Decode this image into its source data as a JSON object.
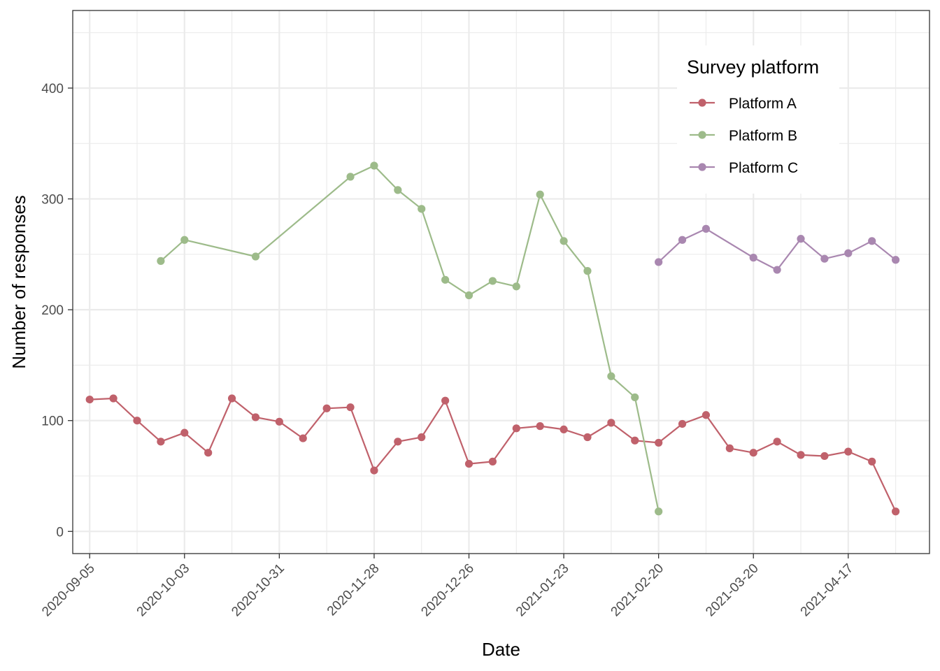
{
  "chart_data": {
    "type": "line",
    "title": "",
    "xlabel": "Date",
    "ylabel": "Number of responses",
    "x_type": "date",
    "xlim": [
      "2020-08-31",
      "2021-05-11"
    ],
    "ylim": [
      -20,
      470
    ],
    "x_ticks": [
      "2020-09-05",
      "2020-10-03",
      "2020-10-31",
      "2020-11-28",
      "2020-12-26",
      "2021-01-23",
      "2021-02-20",
      "2021-03-20",
      "2021-04-17"
    ],
    "y_ticks": [
      0,
      100,
      200,
      300,
      400
    ],
    "grid": true,
    "legend": {
      "title": "Survey platform",
      "position": "top-right"
    },
    "series": [
      {
        "name": "Platform A",
        "color": "#c0616b",
        "x": [
          "2020-09-05",
          "2020-09-12",
          "2020-09-19",
          "2020-09-26",
          "2020-10-03",
          "2020-10-10",
          "2020-10-17",
          "2020-10-24",
          "2020-10-31",
          "2020-11-07",
          "2020-11-14",
          "2020-11-21",
          "2020-11-28",
          "2020-12-05",
          "2020-12-12",
          "2020-12-19",
          "2020-12-26",
          "2021-01-02",
          "2021-01-09",
          "2021-01-16",
          "2021-01-23",
          "2021-01-30",
          "2021-02-06",
          "2021-02-13",
          "2021-02-20",
          "2021-02-27",
          "2021-03-06",
          "2021-03-13",
          "2021-03-20",
          "2021-03-27",
          "2021-04-03",
          "2021-04-10",
          "2021-04-17",
          "2021-04-24",
          "2021-05-01"
        ],
        "values": [
          119,
          120,
          100,
          81,
          89,
          71,
          120,
          103,
          99,
          84,
          111,
          112,
          55,
          81,
          85,
          118,
          61,
          63,
          93,
          95,
          92,
          85,
          98,
          82,
          80,
          97,
          105,
          75,
          71,
          81,
          69,
          68,
          72,
          63,
          18
        ]
      },
      {
        "name": "Platform B",
        "color": "#9dbb8a",
        "x": [
          "2020-09-26",
          "2020-10-03",
          "2020-10-24",
          "2020-11-21",
          "2020-11-28",
          "2020-12-05",
          "2020-12-12",
          "2020-12-19",
          "2020-12-26",
          "2021-01-02",
          "2021-01-09",
          "2021-01-16",
          "2021-01-23",
          "2021-01-30",
          "2021-02-06",
          "2021-02-13",
          "2021-02-20"
        ],
        "values": [
          244,
          263,
          248,
          320,
          330,
          308,
          291,
          227,
          213,
          226,
          221,
          304,
          262,
          235,
          140,
          121,
          18
        ]
      },
      {
        "name": "Platform C",
        "color": "#a987b0",
        "x": [
          "2021-02-20",
          "2021-02-27",
          "2021-03-06",
          "2021-03-20",
          "2021-03-27",
          "2021-04-03",
          "2021-04-10",
          "2021-04-17",
          "2021-04-24",
          "2021-05-01"
        ],
        "values": [
          243,
          263,
          273,
          247,
          236,
          264,
          246,
          251,
          262,
          245
        ]
      }
    ]
  }
}
